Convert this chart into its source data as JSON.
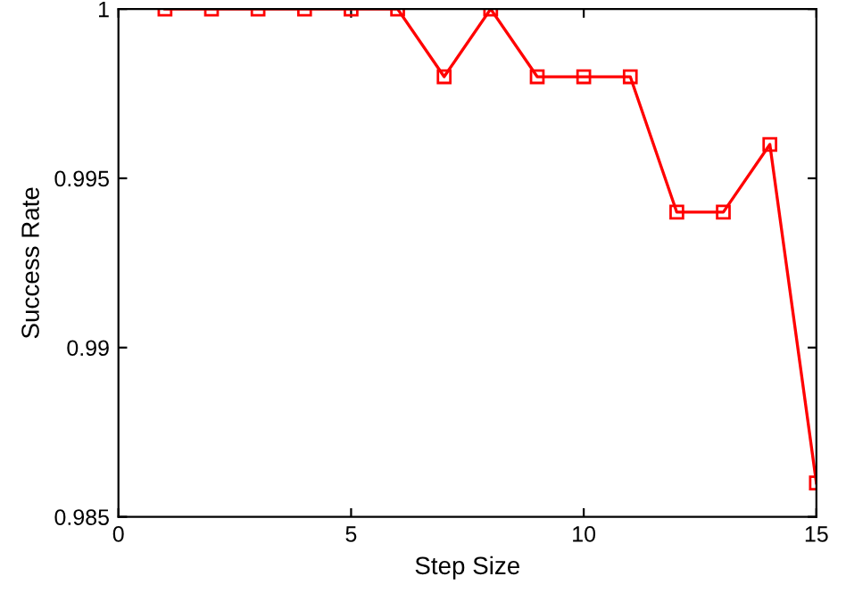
{
  "chart_data": {
    "type": "line",
    "xlabel": "Step Size",
    "ylabel": "Success Rate",
    "x": [
      1,
      2,
      3,
      4,
      5,
      6,
      7,
      8,
      9,
      10,
      11,
      12,
      13,
      14,
      15
    ],
    "series": [
      {
        "color": "#ff0000",
        "values": [
          1,
          1,
          1,
          1,
          1,
          1,
          0.998,
          1,
          0.998,
          0.998,
          0.998,
          0.994,
          0.994,
          0.996,
          0.986
        ]
      }
    ],
    "xlim": [
      0,
      15
    ],
    "ylim": [
      0.985,
      1
    ],
    "xticks": [
      0,
      5,
      10,
      15
    ],
    "yticks": [
      0.985,
      0.99,
      0.995,
      1
    ],
    "marker": "square",
    "line_style": "solid",
    "grid": false,
    "legend": false
  }
}
